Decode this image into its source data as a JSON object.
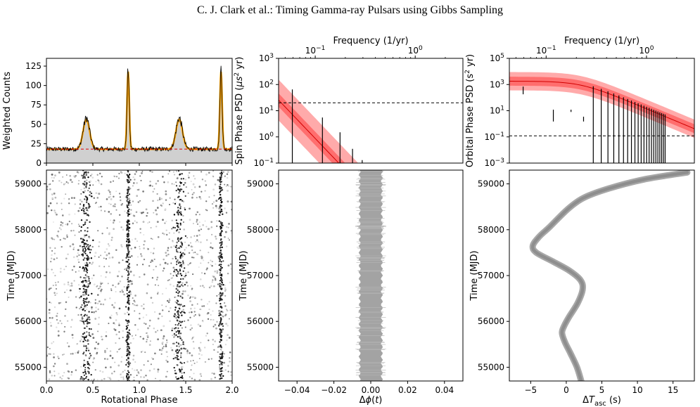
{
  "running_head": "C. J. Clark  et al.: Timing Gamma-ray Pulsars using Gibbs Sampling",
  "colors": {
    "profile_fill": "#d0d0d0",
    "template": "#ffa500",
    "baseline": "#e00000",
    "psd_band_outer": "#ffaaaa",
    "psd_band_inner": "#ff6e6e",
    "residual_band": "#999999"
  },
  "chart_data": [
    {
      "id": "profile",
      "type": "line",
      "ylabel": "Weighted Counts",
      "xlim": [
        0.0,
        2.0
      ],
      "ylim": [
        0,
        135
      ],
      "yticks": [
        "0",
        "25",
        "50",
        "75",
        "100",
        "125"
      ],
      "baseline": 18,
      "peaks": [
        {
          "x": 0.43,
          "height": 58
        },
        {
          "x": 0.88,
          "height": 122
        },
        {
          "x": 1.43,
          "height": 58
        },
        {
          "x": 1.88,
          "height": 122
        }
      ]
    },
    {
      "id": "spin-psd",
      "type": "line",
      "xlabel_top": "Frequency (1/yr)",
      "ylabel": "Spin Phase PSD (μs² yr)",
      "ylabel_parts": [
        "Spin Phase PSD (",
        "μs",
        "2",
        " yr)"
      ],
      "scale": "log",
      "xlim_freq": [
        0.043,
        3.0
      ],
      "ylim": [
        0.1,
        1000
      ],
      "xticks_top": [
        {
          "label": "10",
          "exp": "−1",
          "value": 0.1
        },
        {
          "label": "10",
          "exp": "0",
          "value": 1.0
        }
      ],
      "yticks": [
        {
          "label": "10",
          "exp": "−1",
          "value": 0.1
        },
        {
          "label": "10",
          "exp": "0",
          "value": 1
        },
        {
          "label": "10",
          "exp": "1",
          "value": 10
        },
        {
          "label": "10",
          "exp": "2",
          "value": 100
        },
        {
          "label": "10",
          "exp": "3",
          "value": 1000
        }
      ],
      "white_noise_level": 20,
      "measurements": [
        {
          "f": 0.059,
          "lo": 0.1,
          "hi": 65
        },
        {
          "f": 0.118,
          "lo": 0.1,
          "hi": 5.5
        },
        {
          "f": 0.177,
          "lo": 0.1,
          "hi": 1.5
        },
        {
          "f": 0.236,
          "lo": 0.1,
          "hi": 0.35
        },
        {
          "f": 0.295,
          "lo": 0.1,
          "hi": 0.13
        }
      ]
    },
    {
      "id": "orbital-psd",
      "type": "line",
      "xlabel_top": "Frequency (1/yr)",
      "ylabel": "Orbital Phase PSD (s² yr)",
      "ylabel_parts": [
        "Orbital Phase PSD (",
        "s",
        "2",
        " yr)"
      ],
      "scale": "log",
      "xlim_freq": [
        0.043,
        3.0
      ],
      "ylim": [
        0.001,
        100000
      ],
      "xticks_top": [
        {
          "label": "10",
          "exp": "−1",
          "value": 0.1
        },
        {
          "label": "10",
          "exp": "0",
          "value": 1.0
        }
      ],
      "yticks": [
        {
          "label": "10",
          "exp": "−3",
          "value": 0.001
        },
        {
          "label": "10",
          "exp": "−1",
          "value": 0.1
        },
        {
          "label": "10",
          "exp": "1",
          "value": 10
        },
        {
          "label": "10",
          "exp": "3",
          "value": 1000
        },
        {
          "label": "10",
          "exp": "5",
          "value": 100000
        }
      ],
      "white_noise_level": 0.12
    },
    {
      "id": "photon-phaseogram",
      "type": "scatter",
      "xlabel": "Rotational Phase",
      "ylabel": "Time (MJD)",
      "xlim": [
        0.0,
        2.0
      ],
      "ylim": [
        54700,
        59300
      ],
      "xticks": [
        "0.0",
        "0.5",
        "1.0",
        "1.5",
        "2.0"
      ],
      "yticks": [
        "55000",
        "56000",
        "57000",
        "58000",
        "59000"
      ]
    },
    {
      "id": "spin-residuals",
      "type": "area",
      "xlabel": "Δϕ(t)",
      "xlabel_parts": [
        "Δ",
        "ϕ",
        "(",
        "t",
        ")"
      ],
      "ylabel": "Time (MJD)",
      "xlim": [
        -0.05,
        0.05
      ],
      "ylim": [
        54700,
        59300
      ],
      "xticks": [
        "−0.04",
        "−0.02",
        "0.00",
        "0.02",
        "0.04"
      ],
      "yticks": [
        "55000",
        "56000",
        "57000",
        "58000",
        "59000"
      ],
      "half_width": 0.006
    },
    {
      "id": "orbital-residuals",
      "type": "line",
      "xlabel": "ΔT_asc (s)",
      "xlabel_parts": [
        "Δ",
        "T",
        "asc",
        " (s)"
      ],
      "ylabel": "Time (MJD)",
      "xlim": [
        -8,
        18
      ],
      "ylim": [
        54700,
        59300
      ],
      "xticks": [
        "−5",
        "0",
        "5",
        "10",
        "15"
      ],
      "yticks": [
        "55000",
        "56000",
        "57000",
        "58000",
        "59000"
      ],
      "curve": [
        {
          "t": 54700,
          "x": 2.1
        },
        {
          "t": 55000,
          "x": 1.5
        },
        {
          "t": 55300,
          "x": 0.6
        },
        {
          "t": 55550,
          "x": -0.2
        },
        {
          "t": 55750,
          "x": -0.6
        },
        {
          "t": 55900,
          "x": -0.3
        },
        {
          "t": 56100,
          "x": 0.4
        },
        {
          "t": 56400,
          "x": 1.6
        },
        {
          "t": 56700,
          "x": 2.3
        },
        {
          "t": 56900,
          "x": 2.0
        },
        {
          "t": 57100,
          "x": 0.5
        },
        {
          "t": 57300,
          "x": -1.8
        },
        {
          "t": 57500,
          "x": -4.2
        },
        {
          "t": 57650,
          "x": -4.7
        },
        {
          "t": 57850,
          "x": -3.8
        },
        {
          "t": 58050,
          "x": -2.4
        },
        {
          "t": 58300,
          "x": -0.8
        },
        {
          "t": 58500,
          "x": 0.6
        },
        {
          "t": 58700,
          "x": 2.5
        },
        {
          "t": 58900,
          "x": 6.0
        },
        {
          "t": 59100,
          "x": 11.0
        },
        {
          "t": 59250,
          "x": 17.0
        }
      ]
    }
  ]
}
